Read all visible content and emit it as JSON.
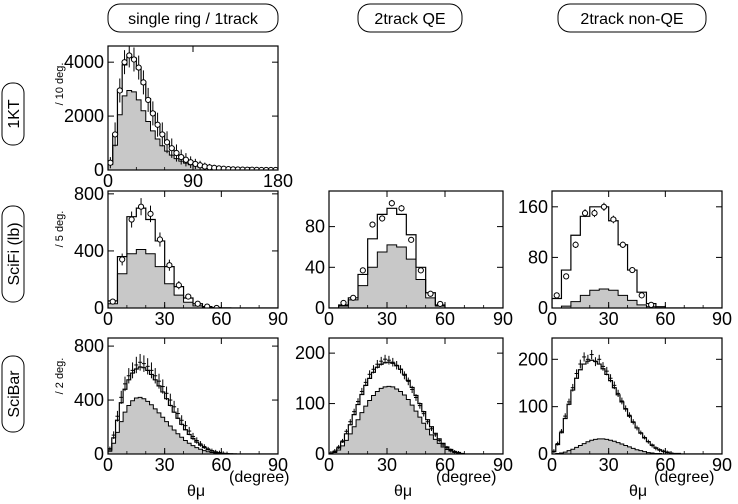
{
  "column_headers": [
    "single ring / 1track",
    "2track QE",
    "2track non-QE"
  ],
  "row_labels": [
    "1KT",
    "SciFi (lb)",
    "SciBar"
  ],
  "x_axis_title": "θμ",
  "x_axis_unit": "(degree)",
  "colors": {
    "mc_total_line": "#000000",
    "qe_fill": "#c8c8c8",
    "qe_line": "#000000",
    "data_marker": "#000000"
  },
  "chart_data": [
    {
      "type": "histogram",
      "row": "1KT",
      "column": "single ring / 1track",
      "ylabel": "/ 10 deg.",
      "xlim": [
        0,
        180
      ],
      "ylim": [
        0,
        4600
      ],
      "xticks": [
        "0",
        "90",
        "180"
      ],
      "yticks": [
        "0",
        "2000",
        "4000"
      ],
      "bin_width": 5,
      "mc_total": [
        280,
        1300,
        2900,
        3900,
        4200,
        4150,
        3750,
        3200,
        2650,
        2150,
        1700,
        1350,
        1050,
        830,
        640,
        500,
        390,
        300,
        235,
        180,
        140,
        108,
        84,
        65,
        50,
        38,
        29,
        22,
        16,
        12,
        9,
        6,
        4,
        3,
        2,
        1
      ],
      "mc_qe": [
        200,
        920,
        2050,
        2750,
        2950,
        2900,
        2600,
        2200,
        1800,
        1450,
        1150,
        900,
        700,
        550,
        420,
        330,
        255,
        195,
        152,
        116,
        90,
        69,
        53,
        41,
        31,
        24,
        18,
        13,
        10,
        7,
        5,
        4,
        3,
        2,
        1,
        1
      ],
      "data": [
        270,
        1320,
        2950,
        4000,
        4250,
        4100,
        3800,
        3250,
        2600,
        2100,
        1680,
        1320,
        1030,
        810,
        630,
        480,
        380,
        290,
        225,
        175,
        130,
        100,
        80,
        60,
        45,
        35,
        25,
        20,
        15,
        10,
        8,
        5,
        3,
        2,
        1,
        1
      ]
    },
    {
      "type": "histogram",
      "row": "SciFi (lb)",
      "column": "single ring / 1track",
      "ylabel": "/ 5 deg.",
      "xlim": [
        0,
        90
      ],
      "ylim": [
        0,
        820
      ],
      "xticks": [
        "0",
        "30",
        "60",
        "90"
      ],
      "yticks": [
        "0",
        "400",
        "800"
      ],
      "bin_width": 5,
      "mc_total": [
        50,
        360,
        640,
        700,
        620,
        470,
        290,
        150,
        70,
        30,
        10,
        3,
        1,
        0,
        0,
        0,
        0,
        0
      ],
      "mc_qe": [
        30,
        240,
        380,
        410,
        380,
        290,
        170,
        90,
        40,
        15,
        5,
        1,
        0,
        0,
        0,
        0,
        0,
        0
      ],
      "data": [
        45,
        340,
        620,
        710,
        660,
        480,
        300,
        160,
        80,
        30,
        10,
        0,
        null,
        null,
        null,
        null,
        null,
        null
      ]
    },
    {
      "type": "histogram",
      "row": "SciFi (lb)",
      "column": "2track QE",
      "ylabel": "",
      "xlim": [
        0,
        90
      ],
      "ylim": [
        0,
        115
      ],
      "xticks": [
        "0",
        "30",
        "60",
        "90"
      ],
      "yticks": [
        "0",
        "40",
        "80"
      ],
      "bin_width": 5,
      "mc_total": [
        0,
        3,
        10,
        33,
        68,
        92,
        98,
        92,
        72,
        40,
        15,
        3,
        0,
        0,
        0,
        0,
        0,
        0
      ],
      "mc_qe": [
        0,
        2,
        8,
        22,
        40,
        55,
        62,
        60,
        48,
        28,
        10,
        2,
        0,
        0,
        0,
        0,
        0,
        0
      ],
      "data": [
        null,
        5,
        10,
        37,
        82,
        88,
        103,
        98,
        67,
        37,
        14,
        4,
        null,
        null,
        null,
        null,
        null,
        null
      ]
    },
    {
      "type": "histogram",
      "row": "SciFi (lb)",
      "column": "2track non-QE",
      "ylabel": "",
      "xlim": [
        0,
        90
      ],
      "ylim": [
        0,
        185
      ],
      "xticks": [
        "0",
        "30",
        "60",
        "90"
      ],
      "yticks": [
        "0",
        "80",
        "160"
      ],
      "bin_width": 5,
      "mc_total": [
        15,
        60,
        115,
        145,
        160,
        160,
        138,
        100,
        60,
        25,
        7,
        2,
        0,
        0,
        0,
        0,
        0,
        0
      ],
      "mc_qe": [
        0,
        3,
        10,
        20,
        28,
        30,
        28,
        20,
        12,
        5,
        2,
        0,
        0,
        0,
        0,
        0,
        0,
        0
      ],
      "data": [
        20,
        50,
        100,
        150,
        150,
        160,
        140,
        100,
        60,
        20,
        5,
        null,
        null,
        null,
        null,
        null,
        null,
        null
      ]
    },
    {
      "type": "histogram",
      "row": "SciBar",
      "column": "single ring / 1track",
      "ylabel": "/ 2 deg.",
      "xlim": [
        0,
        90
      ],
      "ylim": [
        0,
        860
      ],
      "xticks": [
        "0",
        "30",
        "60",
        "90"
      ],
      "yticks": [
        "0",
        "400",
        "800"
      ],
      "bin_width": 2,
      "mc_total": [
        30,
        120,
        250,
        380,
        480,
        550,
        600,
        630,
        645,
        640,
        620,
        590,
        550,
        505,
        460,
        410,
        360,
        310,
        265,
        220,
        180,
        145,
        115,
        88,
        66,
        48,
        34,
        23,
        15,
        9,
        5,
        3,
        2,
        1,
        0,
        0,
        0,
        0,
        0,
        0,
        0,
        0,
        0,
        0,
        0
      ],
      "mc_qe": [
        20,
        80,
        160,
        240,
        310,
        360,
        395,
        415,
        420,
        410,
        390,
        365,
        335,
        305,
        272,
        240,
        208,
        178,
        150,
        124,
        100,
        80,
        62,
        47,
        35,
        25,
        17,
        11,
        7,
        4,
        2,
        1,
        0,
        0,
        0,
        0,
        0,
        0,
        0,
        0,
        0,
        0,
        0,
        0,
        0
      ],
      "data": [
        40,
        140,
        280,
        420,
        520,
        580,
        620,
        660,
        680,
        670,
        650,
        620,
        580,
        540,
        500,
        450,
        400,
        350,
        300,
        250,
        210,
        170,
        130,
        100,
        75,
        55,
        38,
        25,
        16,
        10,
        5,
        3,
        null,
        null,
        null,
        null,
        null,
        null,
        null,
        null,
        null,
        null,
        null,
        null,
        null
      ]
    },
    {
      "type": "histogram",
      "row": "SciBar",
      "column": "2track QE",
      "ylabel": "",
      "xlim": [
        0,
        90
      ],
      "ylim": [
        0,
        230
      ],
      "xticks": [
        "0",
        "30",
        "60",
        "90"
      ],
      "yticks": [
        "0",
        "100",
        "200"
      ],
      "bin_width": 2,
      "mc_total": [
        2,
        5,
        12,
        24,
        40,
        58,
        78,
        98,
        118,
        136,
        150,
        162,
        172,
        178,
        181,
        182,
        180,
        175,
        168,
        158,
        146,
        132,
        116,
        100,
        84,
        68,
        54,
        41,
        30,
        21,
        14,
        9,
        5,
        3,
        1,
        0,
        0,
        0,
        0,
        0,
        0,
        0,
        0,
        0,
        0
      ],
      "mc_qe": [
        1,
        3,
        8,
        16,
        27,
        40,
        54,
        68,
        82,
        95,
        106,
        116,
        124,
        130,
        133,
        134,
        133,
        129,
        124,
        117,
        108,
        97,
        85,
        73,
        61,
        49,
        38,
        29,
        21,
        14,
        9,
        6,
        3,
        2,
        1,
        0,
        0,
        0,
        0,
        0,
        0,
        0,
        0,
        0,
        0
      ],
      "data": [
        2,
        6,
        14,
        26,
        45,
        64,
        84,
        104,
        124,
        142,
        158,
        168,
        178,
        184,
        188,
        186,
        182,
        176,
        168,
        156,
        144,
        128,
        112,
        96,
        80,
        64,
        50,
        38,
        27,
        18,
        12,
        7,
        4,
        2,
        null,
        null,
        null,
        null,
        null,
        null,
        null,
        null,
        null,
        null,
        null
      ]
    },
    {
      "type": "histogram",
      "row": "SciBar",
      "column": "2track non-QE",
      "ylabel": "",
      "xlim": [
        0,
        90
      ],
      "ylim": [
        0,
        245
      ],
      "xticks": [
        "0",
        "30",
        "60",
        "90"
      ],
      "yticks": [
        "0",
        "100",
        "200"
      ],
      "bin_width": 2,
      "mc_total": [
        5,
        20,
        45,
        75,
        105,
        135,
        160,
        178,
        190,
        196,
        198,
        196,
        190,
        180,
        168,
        155,
        140,
        125,
        110,
        95,
        80,
        67,
        55,
        44,
        34,
        26,
        19,
        13,
        9,
        6,
        4,
        2,
        1,
        1,
        0,
        0,
        0,
        0,
        0,
        0,
        0,
        0,
        0,
        0,
        0
      ],
      "mc_qe": [
        0,
        1,
        2,
        4,
        7,
        10,
        14,
        18,
        22,
        26,
        29,
        31,
        32,
        32,
        31,
        29,
        27,
        24,
        21,
        18,
        15,
        12,
        9,
        7,
        5,
        3,
        2,
        1,
        1,
        0,
        0,
        0,
        0,
        0,
        0,
        0,
        0,
        0,
        0,
        0,
        0,
        0,
        0,
        0,
        0
      ],
      "data": [
        6,
        22,
        48,
        80,
        110,
        140,
        170,
        190,
        205,
        200,
        210,
        195,
        200,
        185,
        175,
        160,
        145,
        128,
        112,
        96,
        82,
        68,
        55,
        45,
        35,
        26,
        18,
        12,
        8,
        5,
        3,
        2,
        null,
        null,
        null,
        null,
        null,
        null,
        null,
        null,
        null,
        null,
        null,
        null,
        null
      ]
    }
  ]
}
